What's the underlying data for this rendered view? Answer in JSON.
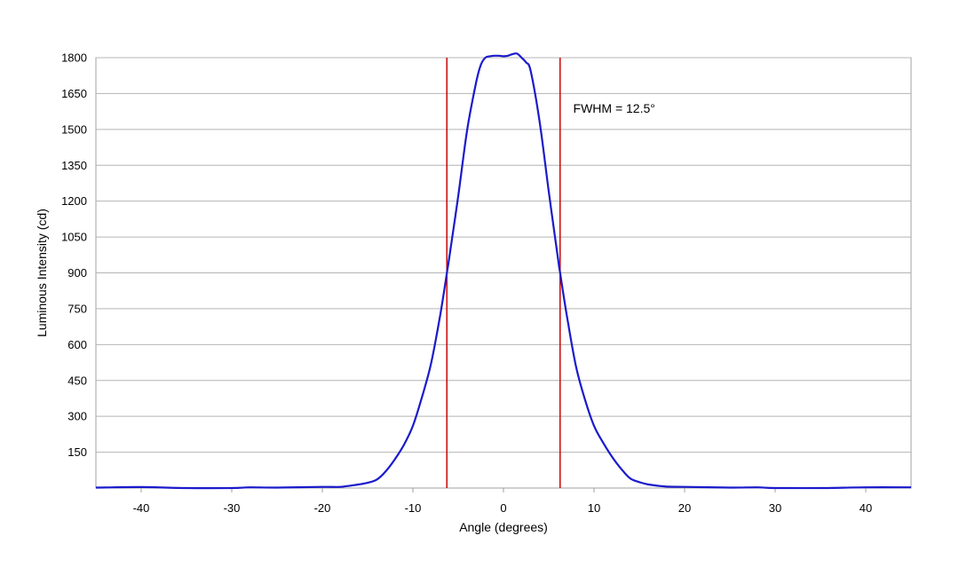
{
  "chart_data": {
    "type": "line",
    "title": "",
    "xlabel": "Angle (degrees)",
    "ylabel": "Luminous Intensity (cd)",
    "xlim": [
      -45,
      45
    ],
    "ylim": [
      0,
      1800
    ],
    "xticks": [
      -40,
      -30,
      -20,
      -10,
      0,
      10,
      20,
      30,
      40
    ],
    "yticks": [
      150,
      300,
      450,
      600,
      750,
      900,
      1050,
      1200,
      1350,
      1500,
      1650,
      1800
    ],
    "grid": "horizontal",
    "legend": "none",
    "series": [
      {
        "color": "#1a1acc",
        "x": [
          -45,
          -40,
          -35,
          -30,
          -28,
          -25,
          -20,
          -18,
          -16,
          -15,
          -14,
          -13,
          -12,
          -11,
          -10,
          -9,
          -8,
          -7,
          -6.25,
          -6,
          -5,
          -4,
          -3,
          -2.5,
          -2,
          -1.5,
          -1,
          -0.5,
          0,
          0.5,
          1,
          1.5,
          2,
          2.5,
          3,
          4,
          5,
          6,
          6.25,
          7,
          8,
          9,
          10,
          11,
          12,
          13,
          14,
          15,
          16,
          18,
          20,
          25,
          28,
          30,
          35,
          40,
          45
        ],
        "y": [
          2,
          4,
          0,
          0,
          3,
          2,
          5,
          5,
          15,
          22,
          35,
          70,
          120,
          180,
          260,
          380,
          520,
          720,
          900,
          960,
          1220,
          1500,
          1700,
          1770,
          1800,
          1806,
          1808,
          1808,
          1806,
          1808,
          1815,
          1817,
          1800,
          1780,
          1745,
          1530,
          1240,
          965,
          900,
          720,
          510,
          370,
          260,
          190,
          130,
          80,
          40,
          25,
          15,
          6,
          5,
          2,
          3,
          0,
          0,
          3,
          3
        ]
      }
    ],
    "vlines": [
      -6.25,
      6.25
    ],
    "vline_color": "#cc1111",
    "annotation": {
      "text": "FWHM = 12.5°",
      "x": 7.7,
      "y": 1570
    }
  }
}
